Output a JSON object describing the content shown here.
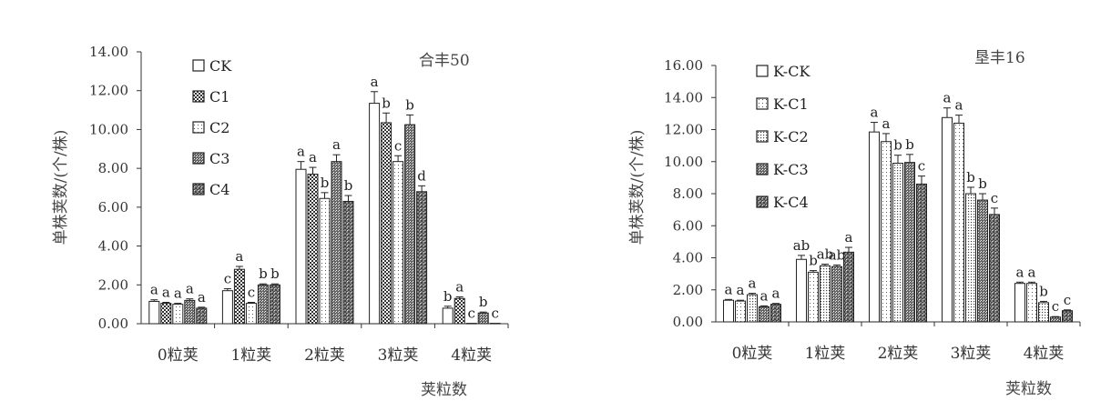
{
  "chart_data": [
    {
      "type": "bar",
      "title": "合丰50",
      "xlabel": "荚粒数",
      "ylabel": "单株荚数/(个/株)",
      "ylim": [
        0,
        14
      ],
      "yticks": [
        "0.00",
        "2.00",
        "4.00",
        "6.00",
        "8.00",
        "10.00",
        "12.00",
        "14.00"
      ],
      "categories": [
        "0粒荚",
        "1粒荚",
        "2粒荚",
        "3粒荚",
        "4粒荚"
      ],
      "legend_position": "top-left",
      "series": [
        {
          "name": "CK",
          "pattern": "white",
          "values": [
            1.15,
            1.7,
            7.95,
            11.35,
            0.8
          ],
          "errors": [
            0.08,
            0.1,
            0.4,
            0.6,
            0.1
          ],
          "sig": [
            "a",
            "c",
            "a",
            "a",
            "b"
          ]
        },
        {
          "name": "C1",
          "pattern": "dots-dark",
          "values": [
            1.05,
            2.8,
            7.7,
            10.35,
            1.3
          ],
          "errors": [
            0.05,
            0.15,
            0.35,
            0.5,
            0.08
          ],
          "sig": [
            "a",
            "a",
            "a",
            "b",
            "a"
          ]
        },
        {
          "name": "C2",
          "pattern": "dots-light",
          "values": [
            1.0,
            1.05,
            6.45,
            8.35,
            0.02
          ],
          "errors": [
            0.05,
            0.05,
            0.3,
            0.3,
            0.0
          ],
          "sig": [
            "a",
            "c",
            "b",
            "c",
            "c"
          ]
        },
        {
          "name": "C3",
          "pattern": "dense",
          "values": [
            1.2,
            2.0,
            8.35,
            10.25,
            0.55
          ],
          "errors": [
            0.08,
            0.05,
            0.35,
            0.5,
            0.05
          ],
          "sig": [
            "a",
            "b",
            "a",
            "b",
            "b"
          ]
        },
        {
          "name": "C4",
          "pattern": "cross",
          "values": [
            0.8,
            2.0,
            6.3,
            6.8,
            0.02
          ],
          "errors": [
            0.05,
            0.05,
            0.3,
            0.3,
            0.0
          ],
          "sig": [
            "a",
            "b",
            "b",
            "d",
            "c"
          ]
        }
      ]
    },
    {
      "type": "bar",
      "title": "垦丰16",
      "xlabel": "荚粒数",
      "ylabel": "单株荚数/(个/株)",
      "ylim": [
        0,
        16
      ],
      "yticks": [
        "0.00",
        "2.00",
        "4.00",
        "6.00",
        "8.00",
        "10.00",
        "12.00",
        "14.00",
        "16.00"
      ],
      "categories": [
        "0粒荚",
        "1粒荚",
        "2粒荚",
        "3粒荚",
        "4粒荚"
      ],
      "legend_position": "top-left",
      "series": [
        {
          "name": "K-CK",
          "pattern": "white",
          "values": [
            1.35,
            3.9,
            11.85,
            12.75,
            2.4
          ],
          "errors": [
            0.05,
            0.25,
            0.6,
            0.6,
            0.08
          ],
          "sig": [
            "a",
            "ab",
            "a",
            "a",
            "a"
          ]
        },
        {
          "name": "K-C1",
          "pattern": "dots-light",
          "values": [
            1.3,
            3.1,
            11.25,
            12.4,
            2.4
          ],
          "errors": [
            0.05,
            0.1,
            0.5,
            0.5,
            0.08
          ],
          "sig": [
            "a",
            "b",
            "a",
            "a",
            "a"
          ]
        },
        {
          "name": "K-C2",
          "pattern": "dots-med",
          "values": [
            1.7,
            3.5,
            9.9,
            8.0,
            1.2
          ],
          "errors": [
            0.08,
            0.1,
            0.5,
            0.4,
            0.08
          ],
          "sig": [
            "a",
            "ab",
            "b",
            "b",
            "b"
          ]
        },
        {
          "name": "K-C3",
          "pattern": "dense",
          "values": [
            0.95,
            3.45,
            9.95,
            7.6,
            0.3
          ],
          "errors": [
            0.05,
            0.1,
            0.5,
            0.4,
            0.03
          ],
          "sig": [
            "a",
            "ab",
            "b",
            "b",
            "c"
          ]
        },
        {
          "name": "K-C4",
          "pattern": "cross",
          "values": [
            1.1,
            4.35,
            8.6,
            6.7,
            0.7
          ],
          "errors": [
            0.05,
            0.3,
            0.5,
            0.4,
            0.05
          ],
          "sig": [
            "a",
            "a",
            "c",
            "c",
            "c"
          ]
        }
      ]
    }
  ]
}
